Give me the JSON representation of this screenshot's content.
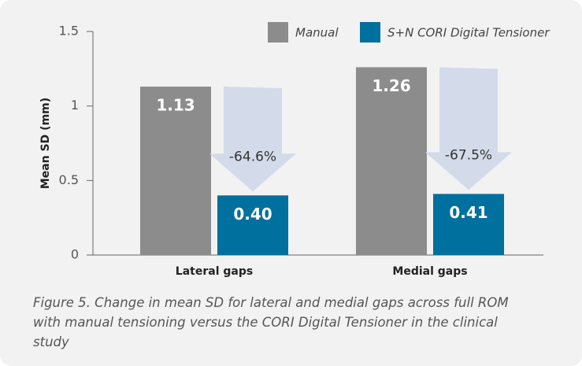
{
  "chart_data": {
    "type": "bar",
    "categories": [
      "Lateral gaps",
      "Medial gaps"
    ],
    "series": [
      {
        "name": "Manual",
        "color": "#8c8c8d",
        "values": [
          1.13,
          1.26
        ],
        "value_labels": [
          "1.13",
          "1.26"
        ]
      },
      {
        "name": "S+N CORI Digital Tensioner",
        "color": "#00709e",
        "values": [
          0.4,
          0.41
        ],
        "value_labels": [
          "0.40",
          "0.41"
        ]
      }
    ],
    "annotations": [
      "-64.6%",
      "-67.5%"
    ],
    "ylabel": "Mean SD (mm)",
    "ylim": [
      0,
      1.5
    ],
    "yticks": [
      0,
      0.5,
      1,
      1.5
    ],
    "legend": "top-right",
    "caption": "Figure 5. Change in mean SD for lateral and medial gaps across full ROM with manual tensioning versus the CORI Digital Tensioner in the clinical study"
  }
}
